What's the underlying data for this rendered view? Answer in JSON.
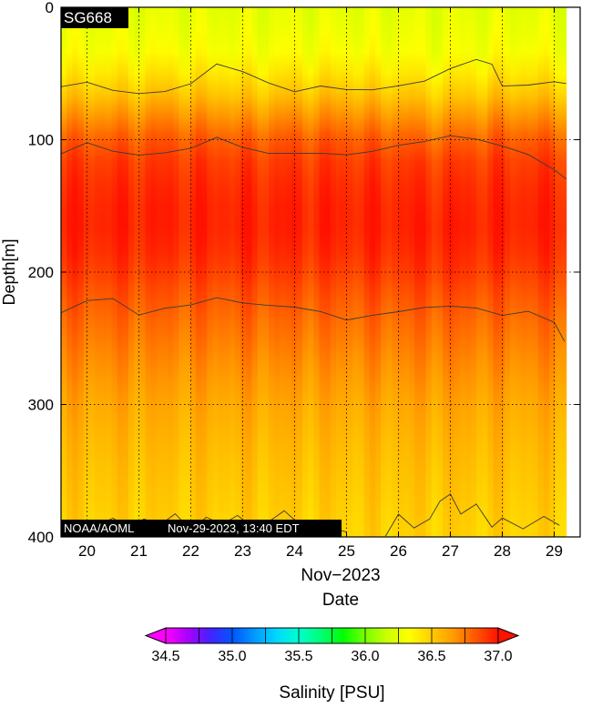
{
  "chart_data": {
    "type": "heatmap",
    "platform_label": "SG668",
    "credit_label": "NOAA/AOML",
    "timestamp_label": "Nov-29-2023, 13:40 EDT",
    "xlabel_line1": "Nov−2023",
    "xlabel_line2": "Date",
    "ylabel": "Depth[m]",
    "x_range_days": [
      19.5,
      29.5
    ],
    "y_range_m": [
      0,
      400
    ],
    "y_inverted": true,
    "x_ticks": [
      20,
      21,
      22,
      23,
      24,
      25,
      26,
      27,
      28,
      29
    ],
    "x_tick_labels": [
      "20",
      "21",
      "22",
      "23",
      "24",
      "25",
      "26",
      "27",
      "28",
      "29"
    ],
    "y_ticks": [
      0,
      100,
      200,
      300,
      400
    ],
    "y_tick_labels": [
      "0",
      "100",
      "200",
      "300",
      "400"
    ],
    "grid": true,
    "data_end_day": 29.23,
    "colorbar": {
      "label": "Salinity [PSU]",
      "range": [
        34.5,
        37.0
      ],
      "ticks": [
        34.5,
        35.0,
        35.5,
        36.0,
        36.5,
        37.0
      ],
      "tick_labels": [
        "34.5",
        "35.0",
        "35.5",
        "36.0",
        "36.5",
        "37.0"
      ],
      "extend": "both",
      "colors": [
        "#ff00ff",
        "#aa00ff",
        "#4422ff",
        "#0055ff",
        "#0099ff",
        "#00d8ff",
        "#00ffcc",
        "#00ff77",
        "#00ff00",
        "#77ff00",
        "#ccff00",
        "#ffff00",
        "#ffcc00",
        "#ff9900",
        "#ff5500",
        "#ff1100"
      ]
    },
    "salinity_profile": {
      "depth_m": [
        0,
        30,
        45,
        55,
        65,
        75,
        90,
        100,
        110,
        130,
        160,
        190,
        210,
        230,
        260,
        300,
        340,
        380,
        400
      ],
      "salinity_psu": [
        36.25,
        36.3,
        36.38,
        36.45,
        36.52,
        36.62,
        36.75,
        36.82,
        36.88,
        36.93,
        36.97,
        36.93,
        36.86,
        36.8,
        36.72,
        36.62,
        36.55,
        36.5,
        36.48
      ]
    },
    "contours": [
      {
        "name": "36.5 (upper)",
        "day": [
          19.5,
          20.0,
          20.5,
          21.0,
          21.5,
          22.0,
          22.5,
          23.0,
          23.5,
          24.0,
          24.5,
          25.0,
          25.5,
          26.0,
          26.5,
          27.0,
          27.5,
          27.8,
          28.0,
          28.5,
          29.0,
          29.23
        ],
        "depth_m": [
          60,
          57,
          62,
          66,
          63,
          58,
          43,
          48,
          58,
          63,
          60,
          62,
          62,
          60,
          55,
          47,
          39,
          43,
          60,
          58,
          57,
          57
        ]
      },
      {
        "name": "36.8 (upper)",
        "day": [
          19.5,
          20.0,
          20.5,
          21.0,
          21.5,
          22.0,
          22.5,
          23.0,
          23.5,
          24.0,
          24.5,
          25.0,
          25.5,
          26.0,
          26.5,
          27.0,
          27.5,
          28.0,
          28.5,
          29.0,
          29.23
        ],
        "depth_m": [
          110,
          103,
          108,
          112,
          110,
          106,
          99,
          105,
          111,
          110,
          110,
          112,
          108,
          105,
          101,
          97,
          100,
          104,
          112,
          122,
          130
        ]
      },
      {
        "name": "36.8 (lower)",
        "day": [
          19.5,
          20.0,
          20.5,
          21.0,
          21.5,
          22.0,
          22.5,
          23.0,
          23.5,
          24.0,
          24.5,
          25.0,
          25.5,
          26.0,
          26.5,
          27.0,
          27.5,
          28.0,
          28.5,
          29.0,
          29.2
        ],
        "depth_m": [
          230,
          222,
          220,
          232,
          228,
          224,
          220,
          223,
          225,
          227,
          229,
          237,
          232,
          230,
          227,
          225,
          228,
          232,
          230,
          238,
          252
        ]
      },
      {
        "name": "36.5 (lower)",
        "day": [
          19.6,
          19.9,
          20.2,
          20.5,
          20.8,
          21.1,
          21.4,
          21.7,
          22.0,
          22.3,
          22.6,
          22.9,
          23.2,
          23.5,
          23.8,
          24.1,
          24.4,
          24.7,
          25.0
        ],
        "depth_m": [
          398,
          388,
          392,
          385,
          394,
          386,
          391,
          383,
          394,
          386,
          390,
          384,
          393,
          388,
          381,
          390,
          396,
          393,
          396
        ]
      },
      {
        "name": "36.5 (lower, east)",
        "day": [
          25.75,
          26.0,
          26.3,
          26.6,
          26.8,
          27.0,
          27.2,
          27.5,
          27.8,
          28.0,
          28.4,
          28.8,
          29.1
        ],
        "depth_m": [
          400,
          382,
          394,
          386,
          373,
          368,
          382,
          376,
          392,
          386,
          394,
          384,
          392
        ]
      }
    ]
  }
}
